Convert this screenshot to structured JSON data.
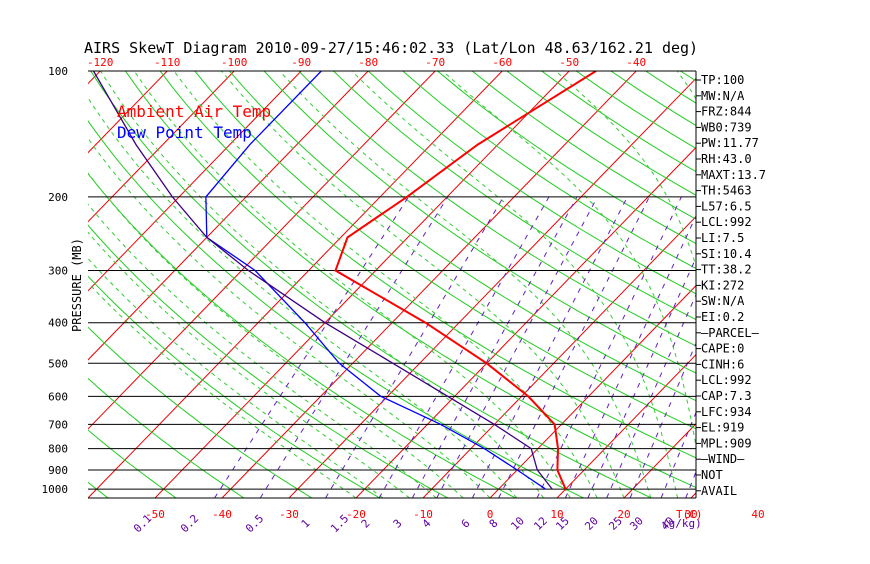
{
  "chart_data": {
    "type": "skewt",
    "title": "AIRS SkewT Diagram 2010-09-27/15:46:02.33 (Lat/Lon 48.63/162.21 deg)",
    "ylabel": "PRESSURE (MB)",
    "pressure_range": [
      1050,
      100
    ],
    "pressure_ticks": [
      100,
      200,
      300,
      400,
      500,
      600,
      700,
      800,
      900,
      1000
    ],
    "pressure_lines": [
      200,
      300,
      400,
      500,
      600,
      700,
      800,
      900,
      1000
    ],
    "top_temp_ticks": [
      -120,
      -110,
      -100,
      -90,
      -80,
      -70,
      -60,
      -50,
      -40
    ],
    "bottom_temp_ticks": [
      -50,
      -40,
      -30,
      -20,
      -10,
      0,
      10,
      20,
      30,
      40
    ],
    "bottom_axis_unit": "T(C)",
    "mixing_ratio_labels": [
      "0.1",
      "0.2",
      "0.5",
      "1",
      "1.5",
      "2",
      "3",
      "4",
      "6",
      "8",
      "10",
      "12",
      "15",
      "20",
      "25",
      "30",
      "40"
    ],
    "mixing_ratio_unit": "(g/kg)",
    "legend": [
      {
        "label": "Ambient Air Temp",
        "color": "#ff0000"
      },
      {
        "label": "Dew Point Temp",
        "color": "#0000ff"
      }
    ],
    "series": [
      {
        "name": "Ambient Air Temp",
        "color": "#ff0000",
        "points": [
          [
            100,
            -46
          ],
          [
            150,
            -53
          ],
          [
            200,
            -56
          ],
          [
            250,
            -59
          ],
          [
            300,
            -56
          ],
          [
            400,
            -35
          ],
          [
            500,
            -20
          ],
          [
            600,
            -9
          ],
          [
            700,
            -1
          ],
          [
            800,
            3
          ],
          [
            900,
            6
          ],
          [
            1000,
            10
          ]
        ]
      },
      {
        "name": "Dew Point Temp",
        "color": "#0000ff",
        "points": [
          [
            100,
            -87
          ],
          [
            150,
            -87
          ],
          [
            200,
            -86
          ],
          [
            250,
            -80
          ],
          [
            300,
            -68
          ],
          [
            400,
            -53
          ],
          [
            500,
            -42
          ],
          [
            600,
            -31
          ],
          [
            700,
            -18
          ],
          [
            800,
            -8
          ],
          [
            900,
            0
          ],
          [
            1000,
            7
          ]
        ]
      },
      {
        "name": "Parcel",
        "color": "#3c0080",
        "points": [
          [
            100,
            -121
          ],
          [
            150,
            -104
          ],
          [
            200,
            -91
          ],
          [
            250,
            -80
          ],
          [
            300,
            -69
          ],
          [
            400,
            -50
          ],
          [
            500,
            -34
          ],
          [
            600,
            -21
          ],
          [
            700,
            -10
          ],
          [
            800,
            -1
          ],
          [
            900,
            3
          ],
          [
            1000,
            8
          ]
        ]
      }
    ],
    "side_labels": [
      "TP:100",
      "MW:N/A",
      "FRZ:844",
      "WB0:739",
      "PW:11.77",
      "RH:43.0",
      "MAXT:13.7",
      "TH:5463",
      "L57:6.5",
      "LCL:992",
      "LI:7.5",
      "SI:10.4",
      "TT:38.2",
      "KI:272",
      "SW:N/A",
      "EI:0.2",
      "—PARCEL—",
      "CAPE:0",
      "CINH:6",
      "LCL:992",
      "CAP:7.3",
      "LFC:934",
      "EL:919",
      "MPL:909",
      "—WIND—",
      "NOT",
      "AVAIL"
    ]
  }
}
